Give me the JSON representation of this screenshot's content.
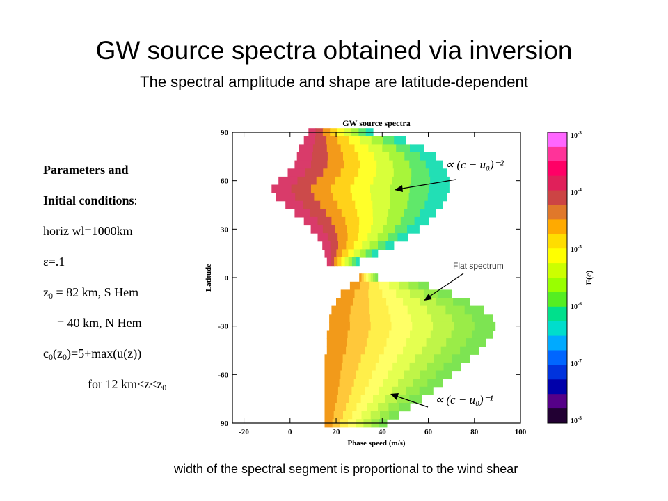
{
  "slide": {
    "title": "GW source spectra obtained via  inversion",
    "subtitle": "The spectral amplitude and shape are latitude-dependent",
    "bottom_note": "width of the spectral segment is proportional to the wind shear"
  },
  "params": {
    "heading1": "Parameters and",
    "heading2": "Initial conditions",
    "heading2_colon": ":",
    "horiz": "horiz wl=1000km",
    "eps_symbol": "ε",
    "eps_value": "=.1",
    "z0_lhs": "z",
    "z0_sub": "0",
    "z0_s": " = 82 km, S Hem",
    "z0_n": "= 40 km, N Hem",
    "c0_a": "c",
    "c0_sub1": "0",
    "c0_b": "(z",
    "c0_sub2": "0",
    "c0_c": ")=5+max(u(z))",
    "for_a": "for 12 km<z<z",
    "for_sub": "0"
  },
  "chart_data": {
    "type": "heatmap",
    "title": "GW source spectra",
    "xlabel": "Phase speed (m/s)",
    "ylabel": "Latitude",
    "xlim": [
      -25,
      100
    ],
    "ylim": [
      -90,
      90
    ],
    "xticks": [
      -20,
      0,
      20,
      40,
      60,
      80,
      100
    ],
    "yticks": [
      90,
      60,
      30,
      0,
      -30,
      -60,
      -90
    ],
    "colorbar": {
      "label": "F(c)",
      "tick_base": "10",
      "tick_exponents": [
        "-3",
        "-4",
        "-5",
        "-6",
        "-7",
        "-8"
      ],
      "colors": [
        "#ff66ff",
        "#ff3399",
        "#ff0066",
        "#e0205a",
        "#cc4444",
        "#e0782a",
        "#ffaa00",
        "#ffdd00",
        "#ffff00",
        "#ccff00",
        "#99ff00",
        "#55ee22",
        "#00e08c",
        "#00ddcc",
        "#00aaff",
        "#0066ff",
        "#0033dd",
        "#0000aa",
        "#550088",
        "#220033"
      ]
    },
    "annotations": {
      "upper": "∝ (c − u₀)⁻²",
      "flat": "Flat spectrum",
      "lower": "∝ (c − u₀)⁻¹"
    },
    "rows": [
      {
        "lat": 90,
        "c0": 8,
        "c1": 36
      },
      {
        "lat": 85,
        "c0": 6,
        "c1": 50
      },
      {
        "lat": 80,
        "c0": 4,
        "c1": 58
      },
      {
        "lat": 75,
        "c0": 3,
        "c1": 63
      },
      {
        "lat": 70,
        "c0": 2,
        "c1": 66
      },
      {
        "lat": 65,
        "c0": -1,
        "c1": 68
      },
      {
        "lat": 60,
        "c0": -5,
        "c1": 69
      },
      {
        "lat": 55,
        "c0": -8,
        "c1": 69
      },
      {
        "lat": 50,
        "c0": -6,
        "c1": 68
      },
      {
        "lat": 45,
        "c0": -2,
        "c1": 66
      },
      {
        "lat": 40,
        "c0": 2,
        "c1": 63
      },
      {
        "lat": 35,
        "c0": 6,
        "c1": 60
      },
      {
        "lat": 30,
        "c0": 9,
        "c1": 56
      },
      {
        "lat": 25,
        "c0": 12,
        "c1": 51
      },
      {
        "lat": 20,
        "c0": 14,
        "c1": 45
      },
      {
        "lat": 15,
        "c0": 15,
        "c1": 38
      },
      {
        "lat": 10,
        "c0": 16,
        "c1": 30
      },
      {
        "lat": 0,
        "c0": 30,
        "c1": 38
      },
      {
        "lat": -5,
        "c0": 26,
        "c1": 60
      },
      {
        "lat": -10,
        "c0": 22,
        "c1": 70
      },
      {
        "lat": -15,
        "c0": 20,
        "c1": 78
      },
      {
        "lat": -20,
        "c0": 18,
        "c1": 84
      },
      {
        "lat": -25,
        "c0": 17,
        "c1": 88
      },
      {
        "lat": -30,
        "c0": 17,
        "c1": 89
      },
      {
        "lat": -35,
        "c0": 16,
        "c1": 88
      },
      {
        "lat": -40,
        "c0": 16,
        "c1": 85
      },
      {
        "lat": -45,
        "c0": 16,
        "c1": 82
      },
      {
        "lat": -50,
        "c0": 15,
        "c1": 78
      },
      {
        "lat": -55,
        "c0": 15,
        "c1": 74
      },
      {
        "lat": -60,
        "c0": 15,
        "c1": 70
      },
      {
        "lat": -65,
        "c0": 15,
        "c1": 66
      },
      {
        "lat": -70,
        "c0": 15,
        "c1": 62
      },
      {
        "lat": -75,
        "c0": 15,
        "c1": 57
      },
      {
        "lat": -80,
        "c0": 15,
        "c1": 52
      },
      {
        "lat": -85,
        "c0": 15,
        "c1": 47
      },
      {
        "lat": -90,
        "c0": 15,
        "c1": 42
      }
    ]
  }
}
